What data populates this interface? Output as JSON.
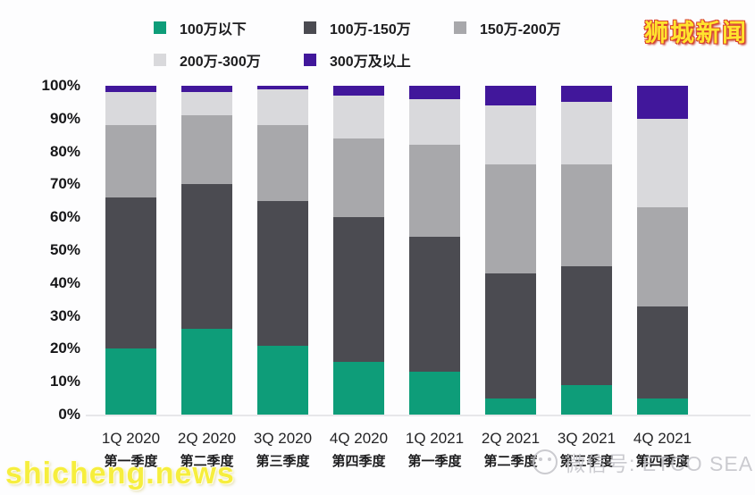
{
  "watermarks": {
    "top_right": "狮城新闻",
    "bottom_left": "shicheng.news",
    "wechat_label": "微信号: ETCO SEA"
  },
  "chart_data": {
    "type": "bar",
    "stacked": true,
    "unit": "percent",
    "title": "",
    "xlabel": "",
    "ylabel": "",
    "ylim": [
      0,
      100
    ],
    "grid": false,
    "legend_position": "top",
    "categories": [
      {
        "en": "1Q 2020",
        "zh": "第一季度"
      },
      {
        "en": "2Q 2020",
        "zh": "第二季度"
      },
      {
        "en": "3Q 2020",
        "zh": "第三季度"
      },
      {
        "en": "4Q 2020",
        "zh": "第四季度"
      },
      {
        "en": "1Q 2021",
        "zh": "第一季度"
      },
      {
        "en": "2Q 2021",
        "zh": "第二季度"
      },
      {
        "en": "3Q 2021",
        "zh": "第三季度"
      },
      {
        "en": "4Q 2021",
        "zh": "第四季度"
      }
    ],
    "series": [
      {
        "name": "100万以下",
        "color": "#0E9D79",
        "values": [
          20,
          26,
          21,
          16,
          13,
          5,
          9,
          5
        ]
      },
      {
        "name": "100万-150万",
        "color": "#4B4B51",
        "values": [
          46,
          44,
          44,
          44,
          41,
          38,
          36,
          28
        ]
      },
      {
        "name": "150万-200万",
        "color": "#A8A8AB",
        "values": [
          22,
          21,
          23,
          24,
          28,
          33,
          31,
          30
        ]
      },
      {
        "name": "200万-300万",
        "color": "#D9D9DC",
        "values": [
          10,
          7,
          11,
          13,
          14,
          18,
          19,
          27
        ]
      },
      {
        "name": "300万及以上",
        "color": "#41179B",
        "values": [
          2,
          2,
          1,
          3,
          4,
          6,
          5,
          10
        ]
      }
    ],
    "yticks": [
      "100%",
      "90%",
      "80%",
      "70%",
      "60%",
      "50%",
      "40%",
      "30%",
      "20%",
      "10%",
      "0%"
    ],
    "legend_rows": [
      [
        0,
        1,
        2
      ],
      [
        3,
        4
      ]
    ]
  }
}
